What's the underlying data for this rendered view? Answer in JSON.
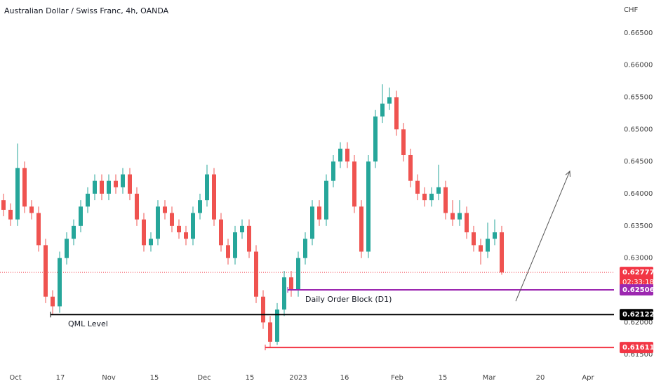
{
  "chart_data": {
    "type": "candlestick",
    "title": "Australian Dollar / Swiss Franc, 4h, OANDA",
    "currency": "CHF",
    "up_color": "#26a69a",
    "down_color": "#ef5350",
    "x": [
      0,
      1,
      2,
      3,
      4,
      5,
      6,
      7,
      8,
      9,
      10,
      11,
      12,
      13,
      14,
      15,
      16,
      17,
      18,
      19,
      20,
      21,
      22,
      23,
      24,
      25,
      26,
      27,
      28,
      29,
      30,
      31,
      32,
      33,
      34,
      35,
      36,
      37,
      38,
      39,
      40,
      41,
      42,
      43,
      44,
      45,
      46,
      47,
      48,
      49,
      50,
      51,
      52,
      53,
      54,
      55,
      56,
      57,
      58,
      59,
      60,
      61,
      62,
      63,
      64,
      65,
      66,
      67,
      68,
      69,
      70,
      71
    ],
    "open": [
      0.639,
      0.6375,
      0.636,
      0.644,
      0.638,
      0.637,
      0.632,
      0.624,
      0.6225,
      0.63,
      0.633,
      0.635,
      0.638,
      0.64,
      0.642,
      0.64,
      0.642,
      0.641,
      0.643,
      0.64,
      0.636,
      0.632,
      0.633,
      0.638,
      0.637,
      0.635,
      0.634,
      0.633,
      0.637,
      0.639,
      0.643,
      0.636,
      0.632,
      0.63,
      0.634,
      0.635,
      0.631,
      0.624,
      0.62,
      0.617,
      0.622,
      0.627,
      0.625,
      0.63,
      0.633,
      0.638,
      0.636,
      0.642,
      0.645,
      0.647,
      0.645,
      0.638,
      0.631,
      0.645,
      0.652,
      0.654,
      0.655,
      0.65,
      0.646,
      0.642,
      0.64,
      0.639,
      0.64,
      0.641,
      0.637,
      0.636,
      0.637,
      0.634,
      0.632,
      0.631,
      0.633,
      0.634
    ],
    "high": [
      0.64,
      0.6385,
      0.6478,
      0.645,
      0.639,
      0.638,
      0.633,
      0.625,
      0.631,
      0.634,
      0.636,
      0.639,
      0.641,
      0.643,
      0.643,
      0.643,
      0.643,
      0.644,
      0.644,
      0.641,
      0.637,
      0.634,
      0.639,
      0.639,
      0.638,
      0.636,
      0.635,
      0.638,
      0.64,
      0.6445,
      0.644,
      0.637,
      0.633,
      0.635,
      0.636,
      0.636,
      0.632,
      0.625,
      0.621,
      0.623,
      0.628,
      0.628,
      0.631,
      0.634,
      0.639,
      0.639,
      0.643,
      0.646,
      0.648,
      0.648,
      0.646,
      0.639,
      0.646,
      0.653,
      0.657,
      0.6565,
      0.656,
      0.651,
      0.647,
      0.643,
      0.641,
      0.641,
      0.6445,
      0.642,
      0.639,
      0.639,
      0.638,
      0.635,
      0.633,
      0.6355,
      0.636,
      0.635
    ],
    "low": [
      0.6365,
      0.635,
      0.635,
      0.637,
      0.636,
      0.631,
      0.623,
      0.6212,
      0.6215,
      0.629,
      0.632,
      0.634,
      0.637,
      0.639,
      0.639,
      0.639,
      0.64,
      0.64,
      0.639,
      0.635,
      0.631,
      0.631,
      0.632,
      0.636,
      0.634,
      0.633,
      0.632,
      0.632,
      0.636,
      0.638,
      0.635,
      0.631,
      0.629,
      0.629,
      0.633,
      0.63,
      0.623,
      0.619,
      0.6161,
      0.6165,
      0.621,
      0.624,
      0.624,
      0.629,
      0.632,
      0.635,
      0.635,
      0.641,
      0.644,
      0.644,
      0.637,
      0.63,
      0.63,
      0.644,
      0.651,
      0.653,
      0.649,
      0.645,
      0.641,
      0.639,
      0.638,
      0.638,
      0.639,
      0.636,
      0.635,
      0.635,
      0.633,
      0.631,
      0.629,
      0.63,
      0.632,
      0.6274
    ],
    "close": [
      0.6375,
      0.636,
      0.644,
      0.638,
      0.637,
      0.632,
      0.624,
      0.6225,
      0.63,
      0.633,
      0.635,
      0.638,
      0.64,
      0.642,
      0.64,
      0.642,
      0.641,
      0.643,
      0.64,
      0.636,
      0.632,
      0.633,
      0.638,
      0.637,
      0.635,
      0.634,
      0.633,
      0.637,
      0.639,
      0.643,
      0.636,
      0.632,
      0.63,
      0.634,
      0.635,
      0.631,
      0.624,
      0.62,
      0.617,
      0.622,
      0.627,
      0.625,
      0.63,
      0.633,
      0.638,
      0.636,
      0.642,
      0.645,
      0.647,
      0.645,
      0.638,
      0.631,
      0.645,
      0.652,
      0.654,
      0.655,
      0.65,
      0.646,
      0.642,
      0.64,
      0.639,
      0.64,
      0.641,
      0.637,
      0.636,
      0.637,
      0.634,
      0.632,
      0.631,
      0.633,
      0.634,
      0.62777
    ],
    "xlim": [
      -0.5,
      87
    ],
    "xticks": [
      {
        "value": 1.7,
        "label": "Oct"
      },
      {
        "value": 8.1,
        "label": "17"
      },
      {
        "value": 15,
        "label": "Nov"
      },
      {
        "value": 21.5,
        "label": "15"
      },
      {
        "value": 28.6,
        "label": "Dec"
      },
      {
        "value": 35.1,
        "label": "15"
      },
      {
        "value": 42,
        "label": "2023"
      },
      {
        "value": 48.6,
        "label": "16"
      },
      {
        "value": 56.1,
        "label": "Feb"
      },
      {
        "value": 62.6,
        "label": "15"
      },
      {
        "value": 69.2,
        "label": "Mar"
      },
      {
        "value": 76.5,
        "label": "20"
      },
      {
        "value": 83.3,
        "label": "Apr"
      }
    ],
    "ylim": [
      0.6123,
      0.6701
    ],
    "yticks": [
      {
        "value": 0.615,
        "label": "0.61500"
      },
      {
        "value": 0.62,
        "label": "0.62000"
      },
      {
        "value": 0.625,
        "label": "0.62500"
      },
      {
        "value": 0.63,
        "label": "0.63000"
      },
      {
        "value": 0.635,
        "label": "0.63500"
      },
      {
        "value": 0.64,
        "label": "0.64000"
      },
      {
        "value": 0.645,
        "label": "0.64500"
      },
      {
        "value": 0.65,
        "label": "0.65000"
      },
      {
        "value": 0.655,
        "label": "0.65500"
      },
      {
        "value": 0.66,
        "label": "0.66000"
      },
      {
        "value": 0.665,
        "label": "0.66500"
      }
    ],
    "last_price": {
      "value": 0.62777,
      "label": "0.62777",
      "countdown": "02:33:18",
      "color": "#f23645"
    },
    "levels": [
      {
        "name": "QML Level",
        "value": 0.62122,
        "label": "0.62122",
        "start": 6.7,
        "color": "#000000"
      },
      {
        "name": "Daily Order Block (D1)",
        "value": 0.62506,
        "label": "0.62506",
        "start": 40.5,
        "color": "#9c27b0"
      },
      {
        "value": 0.61611,
        "label": "0.61611",
        "start": 37.3,
        "color": "#f23645"
      }
    ],
    "arrow": {
      "x": [
        73,
        80.7
      ],
      "y": [
        0.6233,
        0.6435
      ],
      "color": "#555555"
    }
  }
}
